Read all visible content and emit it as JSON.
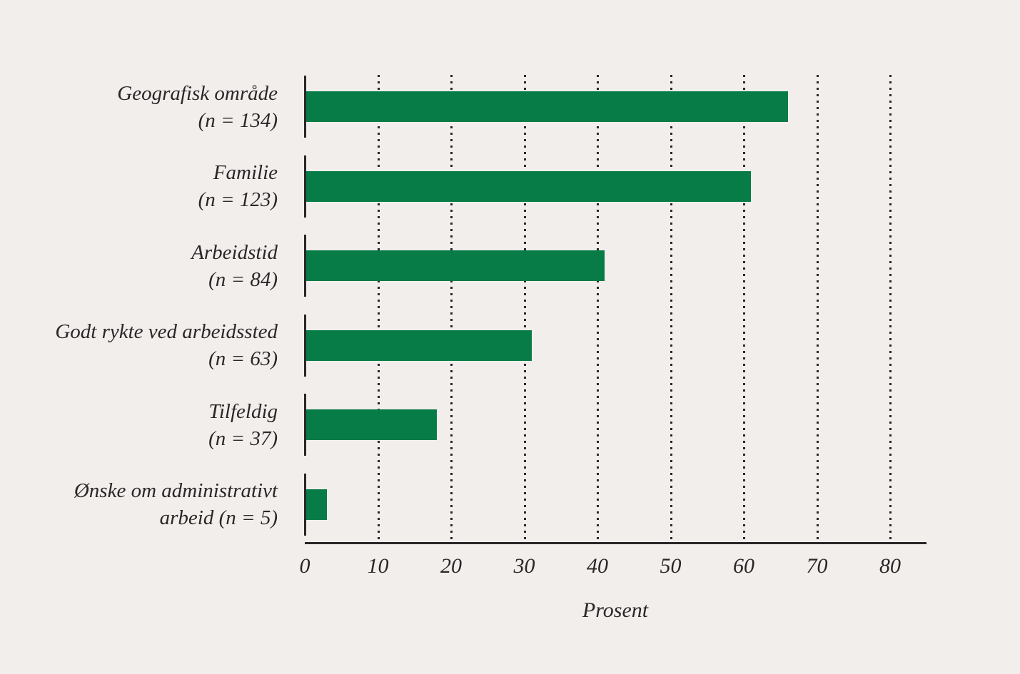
{
  "colors": {
    "background": "#f1eeec",
    "bar": "#077c46",
    "text": "#2b2627",
    "axis": "#2b2627"
  },
  "chart_data": {
    "type": "bar",
    "orientation": "horizontal",
    "title": "",
    "xlabel": "Prosent",
    "ylabel": "",
    "xlim": [
      0,
      85
    ],
    "xticks": [
      0,
      10,
      20,
      30,
      40,
      50,
      60,
      70,
      80
    ],
    "grid": "vertical-dotted",
    "categories": [
      "Geografisk område (n = 134)",
      "Familie (n = 123)",
      "Arbeidstid (n = 84)",
      "Godt rykte ved arbeidssted (n = 63)",
      "Tilfeldig (n = 37)",
      "Ønske om administrativt arbeid (n = 5)"
    ],
    "category_lines": [
      [
        "Geografisk område",
        "(n = 134)"
      ],
      [
        "Familie",
        "(n = 123)"
      ],
      [
        "Arbeidstid",
        "(n = 84)"
      ],
      [
        "Godt rykte ved arbeidssted",
        "(n = 63)"
      ],
      [
        "Tilfeldig",
        "(n = 37)"
      ],
      [
        "Ønske om administrativt",
        "arbeid (n = 5)"
      ]
    ],
    "n_values": [
      134,
      123,
      84,
      63,
      37,
      5
    ],
    "values": [
      66,
      61,
      41,
      31,
      18,
      3
    ]
  }
}
